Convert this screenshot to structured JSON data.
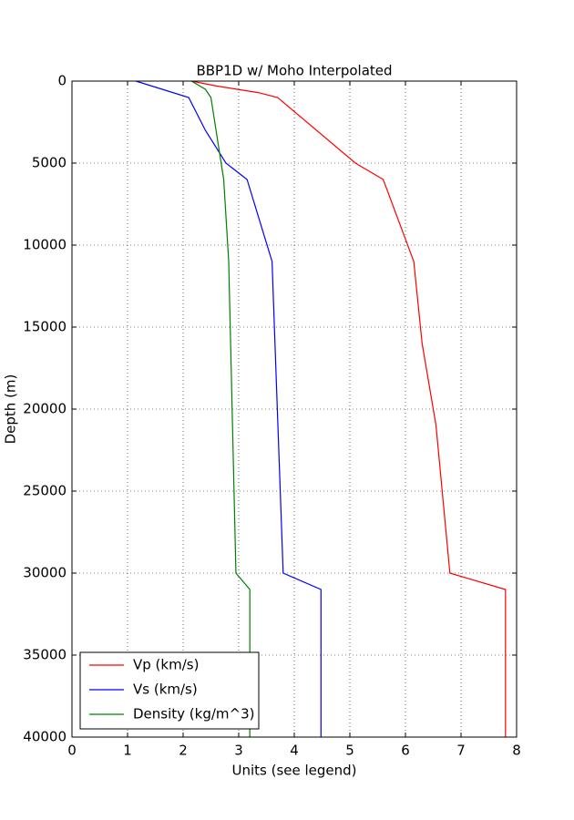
{
  "chart_data": {
    "type": "line",
    "title": "BBP1D w/ Moho Interpolated",
    "x_label": "Units (see legend)",
    "y_label": "Depth (m)",
    "xlim": [
      0,
      8
    ],
    "xticks": [
      0,
      1,
      2,
      3,
      4,
      5,
      6,
      7,
      8
    ],
    "ylim": [
      40000,
      0
    ],
    "yticks": [
      0,
      5000,
      10000,
      15000,
      20000,
      25000,
      30000,
      35000,
      40000
    ],
    "grid": true,
    "legend": "lower left",
    "series": [
      {
        "name": "Vp (km/s)",
        "color": "#ff0000",
        "x": [
          2.15,
          2.6,
          3.35,
          3.7,
          5.1,
          5.6,
          6.15,
          6.3,
          6.55,
          6.8,
          7.8,
          7.8
        ],
        "y": [
          0,
          300,
          700,
          1000,
          5000,
          6000,
          11000,
          16000,
          21000,
          30000,
          31000,
          40000
        ]
      },
      {
        "name": "Vs (km/s)",
        "color": "#0000ff",
        "x": [
          1.15,
          2.1,
          2.4,
          2.77,
          3.15,
          3.6,
          3.8,
          4.48,
          4.48
        ],
        "y": [
          0,
          1000,
          3000,
          5000,
          6000,
          11000,
          30000,
          31000,
          40000
        ]
      },
      {
        "name": "Density (kg/m^3)",
        "color": "#008000",
        "x": [
          2.15,
          2.4,
          2.5,
          2.73,
          2.82,
          2.95,
          3.2,
          3.2
        ],
        "y": [
          0,
          500,
          1000,
          6000,
          11000,
          30000,
          31000,
          40000
        ]
      }
    ]
  }
}
